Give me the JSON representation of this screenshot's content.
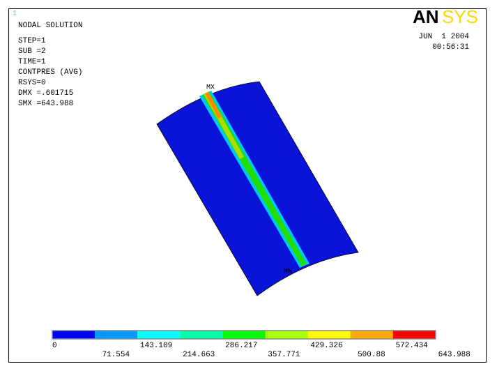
{
  "window_number": "1",
  "info": {
    "title": "NODAL SOLUTION",
    "lines": [
      "STEP=1",
      "SUB =2",
      "TIME=1",
      "CONTPRES (AVG)",
      "RSYS=0",
      "DMX =.601715",
      "SMX =643.988"
    ]
  },
  "logo": {
    "an": "AN",
    "sys": "SYS"
  },
  "date": "JUN  1 2004",
  "time": "00:56:31",
  "markers": {
    "max": "MX",
    "min": "MN"
  },
  "legend": {
    "colors": [
      "#0000ff",
      "#0099ff",
      "#00ffff",
      "#00ffaa",
      "#00ff00",
      "#aaff00",
      "#ffff00",
      "#ffaa00",
      "#ff0000"
    ],
    "labels": [
      "0",
      "71.554",
      "143.109",
      "214.663",
      "286.217",
      "357.771",
      "429.326",
      "500.88",
      "572.434",
      "643.988"
    ]
  }
}
